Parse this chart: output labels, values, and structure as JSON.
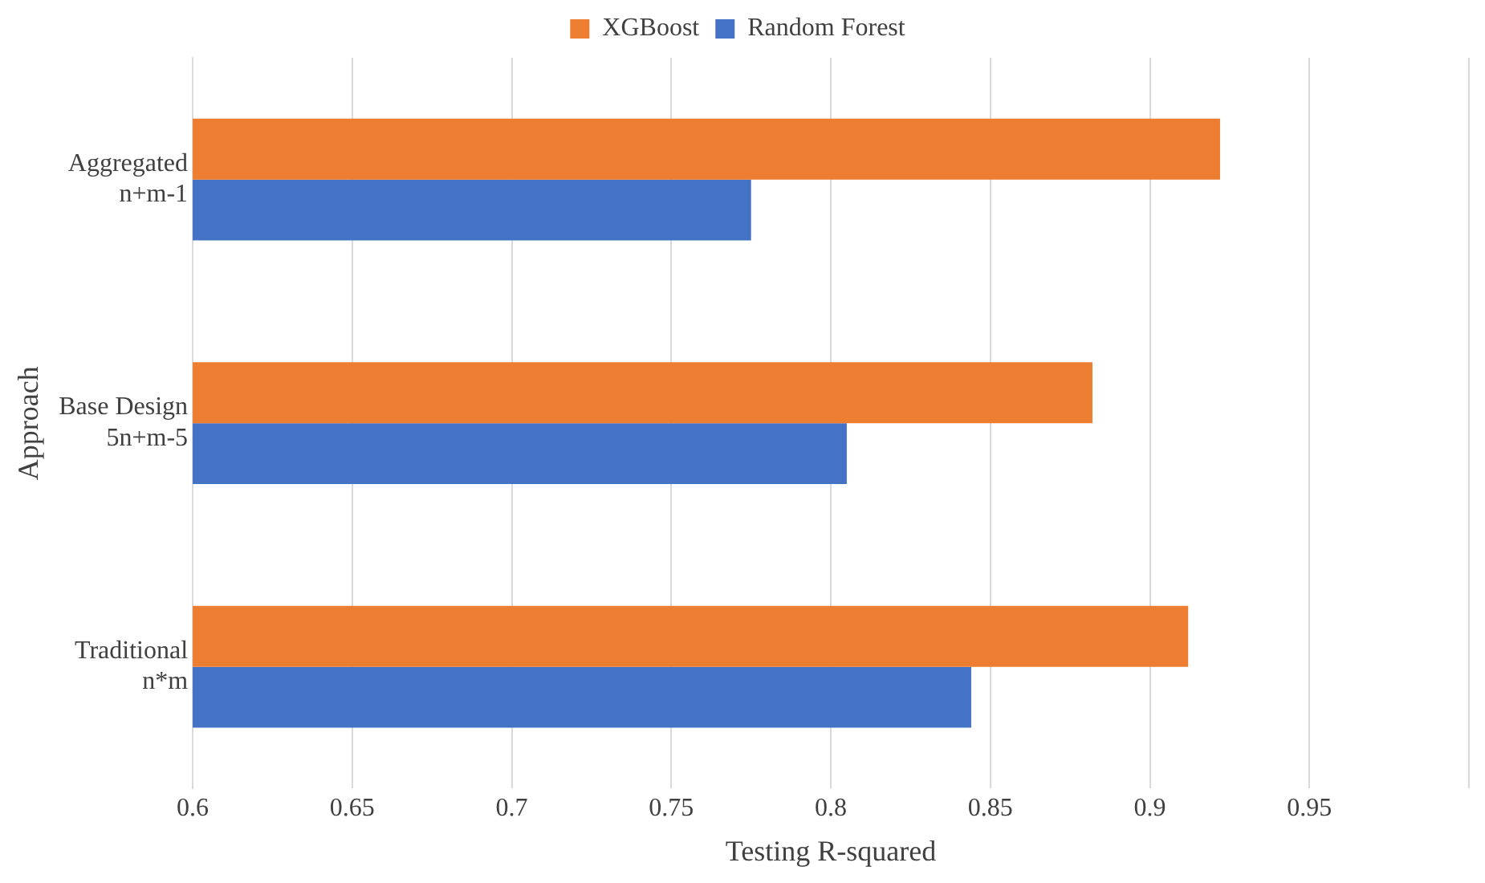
{
  "chart_data": {
    "type": "bar",
    "orientation": "horizontal",
    "xlabel": "Testing R-squared",
    "ylabel": "Approach",
    "categories": [
      "Aggregated\nn+m-1",
      "Base Design\n5n+m-5",
      "Traditional\nn*m"
    ],
    "series": [
      {
        "name": "XGBoost",
        "color": "#ed7d31",
        "values": [
          0.922,
          0.882,
          0.912
        ]
      },
      {
        "name": "Random Forest",
        "color": "#4472c4",
        "values": [
          0.775,
          0.805,
          0.844
        ]
      }
    ],
    "xlim": [
      0.6,
      1
    ],
    "xticks": [
      0.6,
      0.65,
      0.7,
      0.75,
      0.8,
      0.85,
      0.9,
      0.95,
      {
        "value": 1,
        "label": null
      }
    ],
    "grid": "x",
    "legend": "top"
  }
}
